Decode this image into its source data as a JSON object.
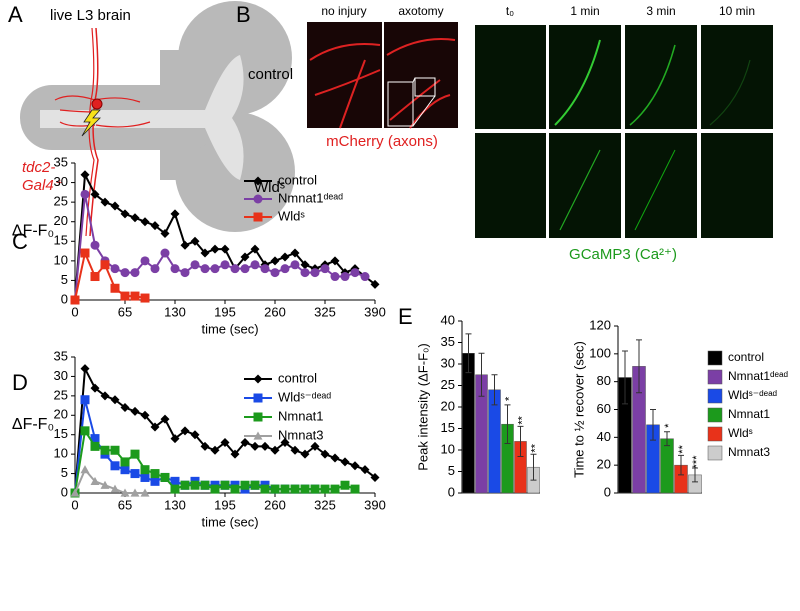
{
  "panel_a": {
    "label": "A",
    "title": "live L3 brain",
    "driver": [
      "tdc2-",
      "Gal4⁺"
    ]
  },
  "panel_b": {
    "label": "B",
    "columns": [
      "no injury",
      "axotomy",
      "t₀",
      "1 min",
      "3 min",
      "10 min"
    ],
    "rows": [
      "control",
      "Wldˢ"
    ],
    "stain_red": "mCherry (axons)",
    "stain_green": "GCaMP3 (Ca²⁺)"
  },
  "chart_data": [
    {
      "type": "line",
      "panel": "C",
      "ylabel": "ΔF-F₀",
      "xlabel": "time (sec)",
      "x": [
        0,
        13,
        26,
        39,
        52,
        65,
        78,
        91,
        104,
        117,
        130,
        143,
        156,
        169,
        182,
        195,
        208,
        221,
        234,
        247,
        260,
        273,
        286,
        299,
        312,
        325,
        338,
        351,
        364,
        377,
        390
      ],
      "xlim": [
        0,
        390
      ],
      "xticks": [
        0,
        65,
        130,
        195,
        260,
        325,
        390
      ],
      "ylim": [
        0,
        35
      ],
      "yticks": [
        0,
        5,
        10,
        15,
        20,
        25,
        30,
        35
      ],
      "series": [
        {
          "name": "control",
          "color": "#000000",
          "marker": "diamond",
          "values": [
            0,
            32,
            27,
            25,
            24,
            22,
            21,
            20,
            19,
            17,
            22,
            14,
            15,
            12,
            13,
            13,
            8,
            11,
            13,
            9,
            10,
            11,
            12,
            9,
            8,
            9,
            10,
            7,
            8,
            6,
            4
          ]
        },
        {
          "name": "Nmnat1ᵈᵉᵃᵈ",
          "color": "#7b3fa5",
          "marker": "circle",
          "values": [
            0,
            27,
            14,
            10,
            8,
            7,
            7,
            10,
            8,
            12,
            8,
            7,
            9,
            8,
            8,
            9,
            8,
            8,
            9,
            8,
            7,
            8,
            9,
            7,
            7,
            8,
            6,
            6,
            7,
            6,
            null
          ]
        },
        {
          "name": "Wldˢ",
          "color": "#e8321a",
          "marker": "square",
          "values": [
            0,
            12,
            6,
            9,
            3,
            1,
            1,
            0.5,
            null,
            null,
            null,
            null,
            null,
            null,
            null,
            null,
            null,
            null,
            null,
            null,
            null,
            null,
            null,
            null,
            null,
            null,
            null,
            null,
            null,
            null,
            null
          ]
        }
      ]
    },
    {
      "type": "line",
      "panel": "D",
      "ylabel": "ΔF-F₀",
      "xlabel": "time (sec)",
      "x": [
        0,
        13,
        26,
        39,
        52,
        65,
        78,
        91,
        104,
        117,
        130,
        143,
        156,
        169,
        182,
        195,
        208,
        221,
        234,
        247,
        260,
        273,
        286,
        299,
        312,
        325,
        338,
        351,
        364,
        377,
        390
      ],
      "xlim": [
        0,
        390
      ],
      "xticks": [
        0,
        65,
        130,
        195,
        260,
        325,
        390
      ],
      "ylim": [
        0,
        35
      ],
      "yticks": [
        0,
        5,
        10,
        15,
        20,
        25,
        30,
        35
      ],
      "series": [
        {
          "name": "control",
          "color": "#000000",
          "marker": "diamond",
          "values": [
            0,
            32,
            27,
            25,
            24,
            22,
            21,
            20,
            17,
            19,
            14,
            16,
            15,
            12,
            11,
            13,
            10,
            13,
            12,
            12,
            11,
            13,
            11,
            10,
            12,
            10,
            9,
            8,
            7,
            6,
            4
          ]
        },
        {
          "name": "Wldˢ⁻ᵈᵉᵃᵈ",
          "color": "#1a4ae6",
          "marker": "square",
          "values": [
            0,
            24,
            14,
            10,
            7,
            6,
            5,
            4,
            3,
            4,
            3,
            2,
            3,
            2,
            2,
            2,
            2,
            1,
            2,
            2,
            1,
            1,
            1,
            1,
            1,
            null,
            null,
            null,
            null,
            null,
            null
          ]
        },
        {
          "name": "Nmnat1",
          "color": "#1c9a1c",
          "marker": "square",
          "values": [
            0,
            16,
            12,
            11,
            11,
            8,
            10,
            6,
            5,
            4,
            1,
            2,
            2,
            2,
            1,
            2,
            1,
            2,
            2,
            1,
            1,
            1,
            1,
            1,
            1,
            1,
            1,
            2,
            1,
            null,
            null
          ]
        },
        {
          "name": "Nmnat3",
          "color": "#a0a0a0",
          "marker": "triangle",
          "values": [
            0,
            6,
            3,
            2,
            1,
            0,
            0,
            0,
            null,
            null,
            null,
            null,
            null,
            null,
            null,
            null,
            null,
            null,
            null,
            null,
            null,
            null,
            null,
            null,
            null,
            null,
            null,
            null,
            null,
            null,
            null
          ]
        }
      ]
    },
    {
      "type": "bar",
      "panel": "E",
      "ylabel": "Peak intensity (ΔF-F₀)",
      "values": [
        32.5,
        27.5,
        24,
        16,
        12,
        6
      ],
      "errors": [
        4.5,
        5,
        3.5,
        4.5,
        3.5,
        3
      ],
      "significance": [
        null,
        null,
        null,
        "*",
        "**",
        "**"
      ],
      "colors": [
        "#000000",
        "#7b3fa5",
        "#1a4ae6",
        "#1c9a1c",
        "#e8321a",
        "#cccccc"
      ],
      "ylim": [
        0,
        40
      ],
      "yticks": [
        0,
        5,
        10,
        15,
        20,
        25,
        30,
        35,
        40
      ]
    },
    {
      "type": "bar",
      "ylabel": "Time to ½ recover (sec)",
      "categories": [
        "control",
        "Nmnat1ᵈᵉᵃᵈ",
        "Wldˢ⁻ᵈᵉᵃᵈ",
        "Nmnat1",
        "Wldˢ",
        "Nmnat3"
      ],
      "values": [
        83,
        91,
        49,
        39,
        20,
        13
      ],
      "errors": [
        19,
        19,
        11,
        5,
        7,
        5
      ],
      "significance": [
        null,
        null,
        null,
        "*",
        "**",
        "***"
      ],
      "colors": [
        "#000000",
        "#7b3fa5",
        "#1a4ae6",
        "#1c9a1c",
        "#e8321a",
        "#cccccc"
      ],
      "ylim": [
        0,
        120
      ],
      "yticks": [
        0,
        20,
        40,
        60,
        80,
        100,
        120
      ],
      "legend": true
    }
  ]
}
